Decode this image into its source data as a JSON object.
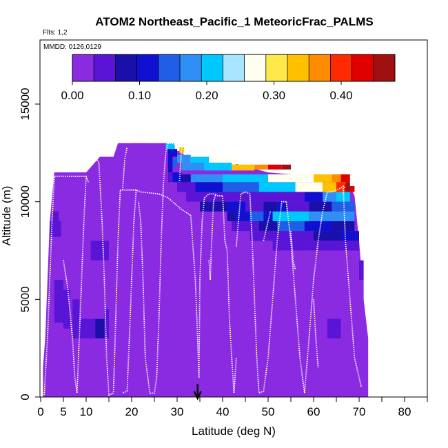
{
  "chart_data": {
    "type": "heatmap",
    "title": "ATOM2 Northeast_Pacific_1 MeteoricFrac_PALMS",
    "flights_note": "Flts: 1,2",
    "dates_note": "MMDD: 0126,0129",
    "xlabel": "Latitude (deg N)",
    "ylabel": "Altitude (m)",
    "xlim": [
      0,
      85
    ],
    "ylim": [
      0,
      17500
    ],
    "x_ticks": [
      0,
      5,
      10,
      20,
      30,
      40,
      50,
      60,
      70,
      80
    ],
    "y_ticks": [
      0,
      5000,
      10000,
      15000
    ],
    "y_tick_labels": [
      "0",
      "5000",
      "10000",
      "15000"
    ],
    "colorbar": {
      "range": [
        0,
        0.48
      ],
      "ticks": [
        0.0,
        0.1,
        0.2,
        0.3,
        0.4
      ],
      "tick_labels": [
        "0.00",
        "0.10",
        "0.20",
        "0.30",
        "0.40"
      ],
      "colors": [
        "#8a2be2",
        "#5a14d6",
        "#1a0fa8",
        "#1010d0",
        "#1f5fe8",
        "#2f8ff5",
        "#00c8ff",
        "#a8e4ff",
        "#fffff0",
        "#ffe84a",
        "#ffc000",
        "#ff8c00",
        "#ff2a00",
        "#e00000",
        "#a01010"
      ]
    },
    "marker_latitude": 34.5,
    "background_value": 0.0,
    "domain_profile": [
      [
        0.5,
        1500
      ],
      [
        1,
        3000
      ],
      [
        2,
        9000
      ],
      [
        3,
        11500
      ],
      [
        10,
        11500
      ],
      [
        13,
        12300
      ],
      [
        16,
        12300
      ],
      [
        17,
        13000
      ],
      [
        28,
        13000
      ],
      [
        30,
        12800
      ],
      [
        33,
        12000
      ],
      [
        37,
        11700
      ],
      [
        42,
        12000
      ],
      [
        50,
        11500
      ],
      [
        60,
        11300
      ],
      [
        66,
        11000
      ],
      [
        68,
        10800
      ],
      [
        69,
        10300
      ],
      [
        70,
        8000
      ],
      [
        71,
        5000
      ],
      [
        72,
        3000
      ],
      [
        72,
        500
      ]
    ],
    "cells": [
      [
        27.5,
        29.5,
        12700,
        13000,
        0.22
      ],
      [
        29.5,
        30.5,
        12600,
        12900,
        0.26
      ],
      [
        30.5,
        31.5,
        12500,
        12800,
        0.32
      ],
      [
        28,
        30,
        12300,
        12700,
        0.12
      ],
      [
        30,
        33,
        12000,
        12400,
        0.18
      ],
      [
        33,
        37,
        12000,
        12300,
        0.22
      ],
      [
        37,
        43,
        11900,
        12200,
        0.28
      ],
      [
        28,
        29,
        11500,
        12300,
        0.1
      ],
      [
        29,
        30,
        11800,
        12200,
        0.15
      ],
      [
        31,
        36,
        11600,
        12000,
        0.16
      ],
      [
        36,
        42,
        11600,
        12000,
        0.22
      ],
      [
        42,
        47,
        11600,
        11900,
        0.32
      ],
      [
        47,
        50,
        11650,
        11900,
        0.36
      ],
      [
        50,
        53,
        11650,
        11900,
        0.42
      ],
      [
        53,
        55,
        11650,
        11900,
        0.46
      ],
      [
        28,
        29,
        11000,
        11500,
        0.05
      ],
      [
        29,
        31,
        11000,
        11500,
        0.12
      ],
      [
        31,
        33,
        11000,
        11400,
        0.08
      ],
      [
        33,
        40,
        11000,
        11400,
        0.18
      ],
      [
        40,
        50,
        11000,
        11400,
        0.22
      ],
      [
        50,
        60,
        11000,
        11400,
        0.26
      ],
      [
        60,
        64,
        11000,
        11400,
        0.32
      ],
      [
        64,
        66,
        11000,
        11400,
        0.38
      ],
      [
        66,
        68,
        11000,
        11400,
        0.44
      ],
      [
        30,
        34,
        10500,
        11000,
        0.06
      ],
      [
        34,
        40,
        10500,
        11000,
        0.1
      ],
      [
        40,
        48,
        10500,
        11000,
        0.14
      ],
      [
        48,
        56,
        10500,
        11000,
        0.2
      ],
      [
        56,
        62,
        10500,
        11000,
        0.26
      ],
      [
        62,
        65,
        10500,
        11000,
        0.34
      ],
      [
        65,
        67,
        10500,
        11000,
        0.4
      ],
      [
        67,
        68,
        10500,
        11000,
        0.46
      ],
      [
        68,
        69,
        10500,
        10800,
        0.44
      ],
      [
        32,
        36,
        10000,
        10500,
        0.04
      ],
      [
        36,
        45,
        10000,
        10500,
        0.06
      ],
      [
        45,
        52,
        10000,
        10500,
        0.05
      ],
      [
        52,
        58,
        10000,
        10500,
        0.04
      ],
      [
        58,
        62,
        10000,
        10500,
        0.1
      ],
      [
        62,
        65,
        10000,
        10500,
        0.16
      ],
      [
        65,
        68,
        10000,
        10500,
        0.2
      ],
      [
        35,
        41,
        9500,
        10000,
        0.08
      ],
      [
        41,
        45,
        9500,
        10000,
        0.1
      ],
      [
        45,
        49,
        9500,
        10000,
        0.06
      ],
      [
        49,
        52,
        9500,
        10000,
        0.08
      ],
      [
        52,
        54,
        9500,
        10000,
        0.1
      ],
      [
        54,
        59,
        9500,
        10000,
        0.06
      ],
      [
        59,
        64,
        9500,
        10000,
        0.08
      ],
      [
        64,
        69,
        9500,
        10000,
        0.14
      ],
      [
        41,
        43,
        9000,
        9500,
        0.07
      ],
      [
        43,
        46,
        9000,
        9500,
        0.12
      ],
      [
        46,
        49,
        9000,
        9500,
        0.14
      ],
      [
        49,
        51,
        9000,
        9500,
        0.1
      ],
      [
        51,
        59,
        9000,
        9500,
        0.2
      ],
      [
        59,
        64,
        9000,
        9500,
        0.18
      ],
      [
        64,
        69,
        9000,
        9500,
        0.16
      ],
      [
        42,
        48,
        8500,
        9000,
        0.05
      ],
      [
        48,
        52,
        8500,
        9000,
        0.08
      ],
      [
        52,
        58,
        8500,
        9000,
        0.14
      ],
      [
        58,
        64,
        8500,
        9000,
        0.12
      ],
      [
        64,
        69,
        8500,
        9000,
        0.08
      ],
      [
        46,
        52,
        8000,
        8500,
        0.05
      ],
      [
        52,
        56,
        8000,
        8500,
        0.06
      ],
      [
        56,
        60,
        8000,
        8500,
        0.05
      ],
      [
        60,
        66,
        8000,
        8500,
        0.07
      ],
      [
        66,
        70,
        8000,
        8500,
        0.1
      ],
      [
        51,
        54,
        7500,
        8000,
        0.05
      ],
      [
        54,
        58,
        7500,
        8000,
        0.04
      ],
      [
        58,
        66,
        7500,
        8000,
        0.05
      ],
      [
        66,
        70,
        7500,
        8000,
        0.06
      ],
      [
        2,
        3,
        8200,
        9000,
        0.05
      ],
      [
        3,
        4.5,
        8200,
        9000,
        0.06
      ],
      [
        2.5,
        4,
        9000,
        9500,
        0.04
      ],
      [
        20,
        24,
        12500,
        13000,
        0.02
      ],
      [
        15,
        17,
        11600,
        12300,
        0.02
      ],
      [
        5,
        6,
        6000,
        8500,
        0.02
      ],
      [
        7.5,
        10,
        7000,
        8000,
        0.02
      ],
      [
        10,
        11,
        7000,
        8000,
        0.03
      ],
      [
        11,
        15,
        7000,
        8000,
        0.05
      ],
      [
        15,
        17,
        7000,
        8000,
        0.03
      ],
      [
        19,
        21,
        6500,
        7500,
        0.02
      ],
      [
        21,
        24,
        6500,
        7500,
        0.03
      ],
      [
        24,
        26,
        6500,
        7500,
        0.02
      ],
      [
        25,
        27,
        5500,
        6500,
        0.02
      ],
      [
        27,
        30,
        5500,
        6500,
        0.03
      ],
      [
        2,
        3,
        4000,
        5000,
        0.03
      ],
      [
        3,
        5,
        3800,
        6000,
        0.04
      ],
      [
        5,
        6.5,
        3500,
        5500,
        0.05
      ],
      [
        7,
        8.5,
        3000,
        5000,
        0.04
      ],
      [
        8.5,
        10,
        3000,
        4000,
        0.05
      ],
      [
        10,
        12,
        3000,
        4000,
        0.06
      ],
      [
        12,
        14,
        3000,
        4000,
        0.07
      ],
      [
        14,
        15,
        3000,
        4000,
        0.05
      ],
      [
        14,
        15,
        3500,
        4500,
        0.04
      ],
      [
        15,
        18,
        3500,
        4500,
        0.03
      ],
      [
        26,
        28,
        5000,
        5500,
        0.02
      ],
      [
        30,
        34,
        4000,
        6000,
        0.02
      ],
      [
        36,
        38,
        4000,
        4500,
        0.02
      ],
      [
        43,
        45,
        2000,
        3000,
        0.02
      ],
      [
        46,
        48,
        3000,
        4000,
        0.02
      ],
      [
        52,
        56,
        4500,
        5500,
        0.02
      ],
      [
        56,
        58,
        4000,
        5000,
        0.02
      ],
      [
        61,
        63,
        3500,
        4500,
        0.03
      ],
      [
        63,
        66,
        3000,
        4000,
        0.04
      ],
      [
        66,
        68,
        3500,
        4500,
        0.03
      ],
      [
        57,
        61,
        4000,
        5000,
        0.02
      ],
      [
        70,
        71,
        6000,
        7000,
        0.04
      ],
      [
        70,
        71,
        5000,
        6000,
        0.03
      ],
      [
        13,
        15,
        600,
        1200,
        0.02
      ],
      [
        20,
        22,
        300,
        800,
        0.02
      ]
    ],
    "flight_tracks": [
      [
        [
          0.8,
          100
        ],
        [
          1,
          1000
        ],
        [
          1.5,
          3000
        ],
        [
          2,
          6000
        ],
        [
          2.5,
          9000
        ],
        [
          3,
          11300
        ],
        [
          10,
          11300
        ],
        [
          10.5,
          11000
        ]
      ],
      [
        [
          5,
          7000
        ],
        [
          6,
          5500
        ],
        [
          7,
          3000
        ],
        [
          7.5,
          1000
        ],
        [
          8,
          200
        ],
        [
          9,
          6000
        ],
        [
          9.5,
          9000
        ],
        [
          10,
          11300
        ]
      ],
      [
        [
          10.5,
          12300
        ],
        [
          12,
          12300
        ],
        [
          12.8,
          12000
        ],
        [
          13.5,
          9000
        ],
        [
          14,
          6000
        ],
        [
          14.5,
          2000
        ],
        [
          15,
          100
        ],
        [
          16,
          200
        ],
        [
          16.5,
          4000
        ],
        [
          17,
          8000
        ],
        [
          17.5,
          10600
        ]
      ],
      [
        [
          17.5,
          10600
        ],
        [
          21,
          10600
        ],
        [
          22,
          10500
        ],
        [
          26,
          10400
        ],
        [
          27,
          10300
        ],
        [
          28,
          10200
        ],
        [
          29,
          10000
        ],
        [
          31,
          9600
        ],
        [
          33,
          9300
        ]
      ],
      [
        [
          18,
          10600
        ],
        [
          18.5,
          12200
        ],
        [
          19,
          12800
        ]
      ],
      [
        [
          28,
          13000
        ],
        [
          27.5,
          12500
        ],
        [
          27,
          11000
        ],
        [
          26.5,
          8000
        ],
        [
          26,
          4000
        ],
        [
          25.5,
          1000
        ],
        [
          25,
          200
        ],
        [
          24,
          200
        ],
        [
          23,
          2000
        ],
        [
          22.5,
          6000
        ],
        [
          22,
          9000
        ],
        [
          21.5,
          10000
        ]
      ],
      [
        [
          21,
          10600
        ],
        [
          20.5,
          9000
        ],
        [
          20,
          6000
        ],
        [
          19.5,
          3000
        ],
        [
          19,
          300
        ],
        [
          18,
          200
        ]
      ],
      [
        [
          28,
          13000
        ],
        [
          29,
          13000
        ],
        [
          30,
          12900
        ],
        [
          31,
          12800
        ]
      ],
      [
        [
          33,
          9300
        ],
        [
          34,
          6000
        ],
        [
          34.5,
          3000
        ],
        [
          34.8,
          1000
        ]
      ],
      [
        [
          34.8,
          1000
        ],
        [
          35,
          6000
        ],
        [
          35.5,
          9000
        ],
        [
          36,
          10200
        ],
        [
          37,
          10400
        ],
        [
          38,
          10400
        ],
        [
          39,
          10300
        ],
        [
          40,
          10300
        ]
      ],
      [
        [
          37,
          7000
        ],
        [
          37.3,
          6000
        ],
        [
          37.5,
          7500
        ],
        [
          38,
          10000
        ],
        [
          38.5,
          10400
        ]
      ],
      [
        [
          40,
          10300
        ],
        [
          40.5,
          8000
        ],
        [
          41,
          7500
        ],
        [
          41.5,
          4000
        ],
        [
          42,
          2000
        ],
        [
          42.5,
          200
        ],
        [
          43,
          2000
        ]
      ],
      [
        [
          43,
          7700
        ],
        [
          44,
          10400
        ],
        [
          45,
          10500
        ],
        [
          46,
          10400
        ],
        [
          46.5,
          8000
        ],
        [
          47,
          5000
        ],
        [
          47.5,
          2000
        ],
        [
          48,
          200
        ],
        [
          49,
          300
        ],
        [
          50,
          2000
        ],
        [
          51,
          5000
        ],
        [
          52,
          8000
        ],
        [
          53,
          10000
        ],
        [
          54,
          10000
        ]
      ],
      [
        [
          54,
          10000
        ],
        [
          55,
          8000
        ],
        [
          56,
          5000
        ],
        [
          57,
          2000
        ],
        [
          58,
          200
        ],
        [
          59,
          3000
        ],
        [
          60,
          6000
        ],
        [
          61,
          8000
        ],
        [
          62,
          9500
        ],
        [
          62.5,
          10000
        ]
      ],
      [
        [
          49,
          8000
        ],
        [
          50,
          9000
        ],
        [
          50.5,
          9500
        ]
      ],
      [
        [
          55,
          8500
        ],
        [
          55.5,
          7000
        ],
        [
          56,
          6500
        ]
      ],
      [
        [
          62.5,
          10000
        ],
        [
          63,
          10500
        ],
        [
          64,
          10500
        ],
        [
          65,
          10600
        ],
        [
          66,
          10700
        ],
        [
          66.5,
          10800
        ],
        [
          67,
          10700
        ]
      ],
      [
        [
          66.5,
          10800
        ],
        [
          67,
          8000
        ],
        [
          68,
          5000
        ],
        [
          69,
          2000
        ],
        [
          69.5,
          1500
        ],
        [
          70,
          1000
        ],
        [
          70.5,
          500
        ]
      ],
      [
        [
          60,
          5000
        ],
        [
          60.5,
          3000
        ],
        [
          61,
          1500
        ]
      ],
      [
        [
          31,
          12800
        ],
        [
          30.5,
          11000
        ]
      ]
    ]
  }
}
